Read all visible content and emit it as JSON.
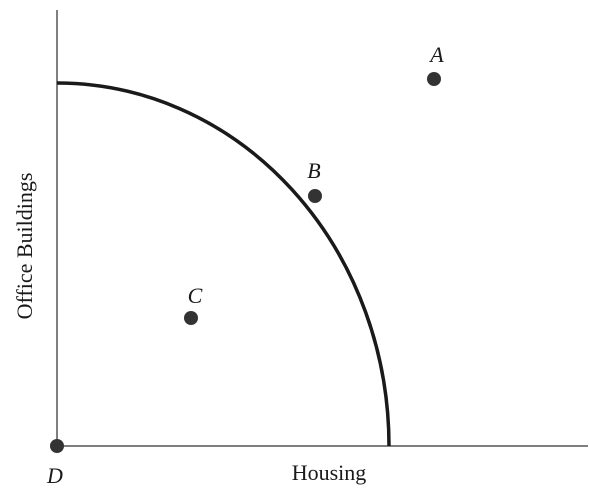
{
  "diagram": {
    "x_axis_label": "Housing",
    "y_axis_label": "Office Buildings",
    "points": [
      {
        "label": "A",
        "position": "outside the curve"
      },
      {
        "label": "B",
        "position": "on the curve"
      },
      {
        "label": "C",
        "position": "inside the curve"
      },
      {
        "label": "D",
        "position": "origin"
      }
    ],
    "colors": {
      "ink": "#1a1a1a",
      "axis": "#555555",
      "background": "#ffffff"
    }
  }
}
